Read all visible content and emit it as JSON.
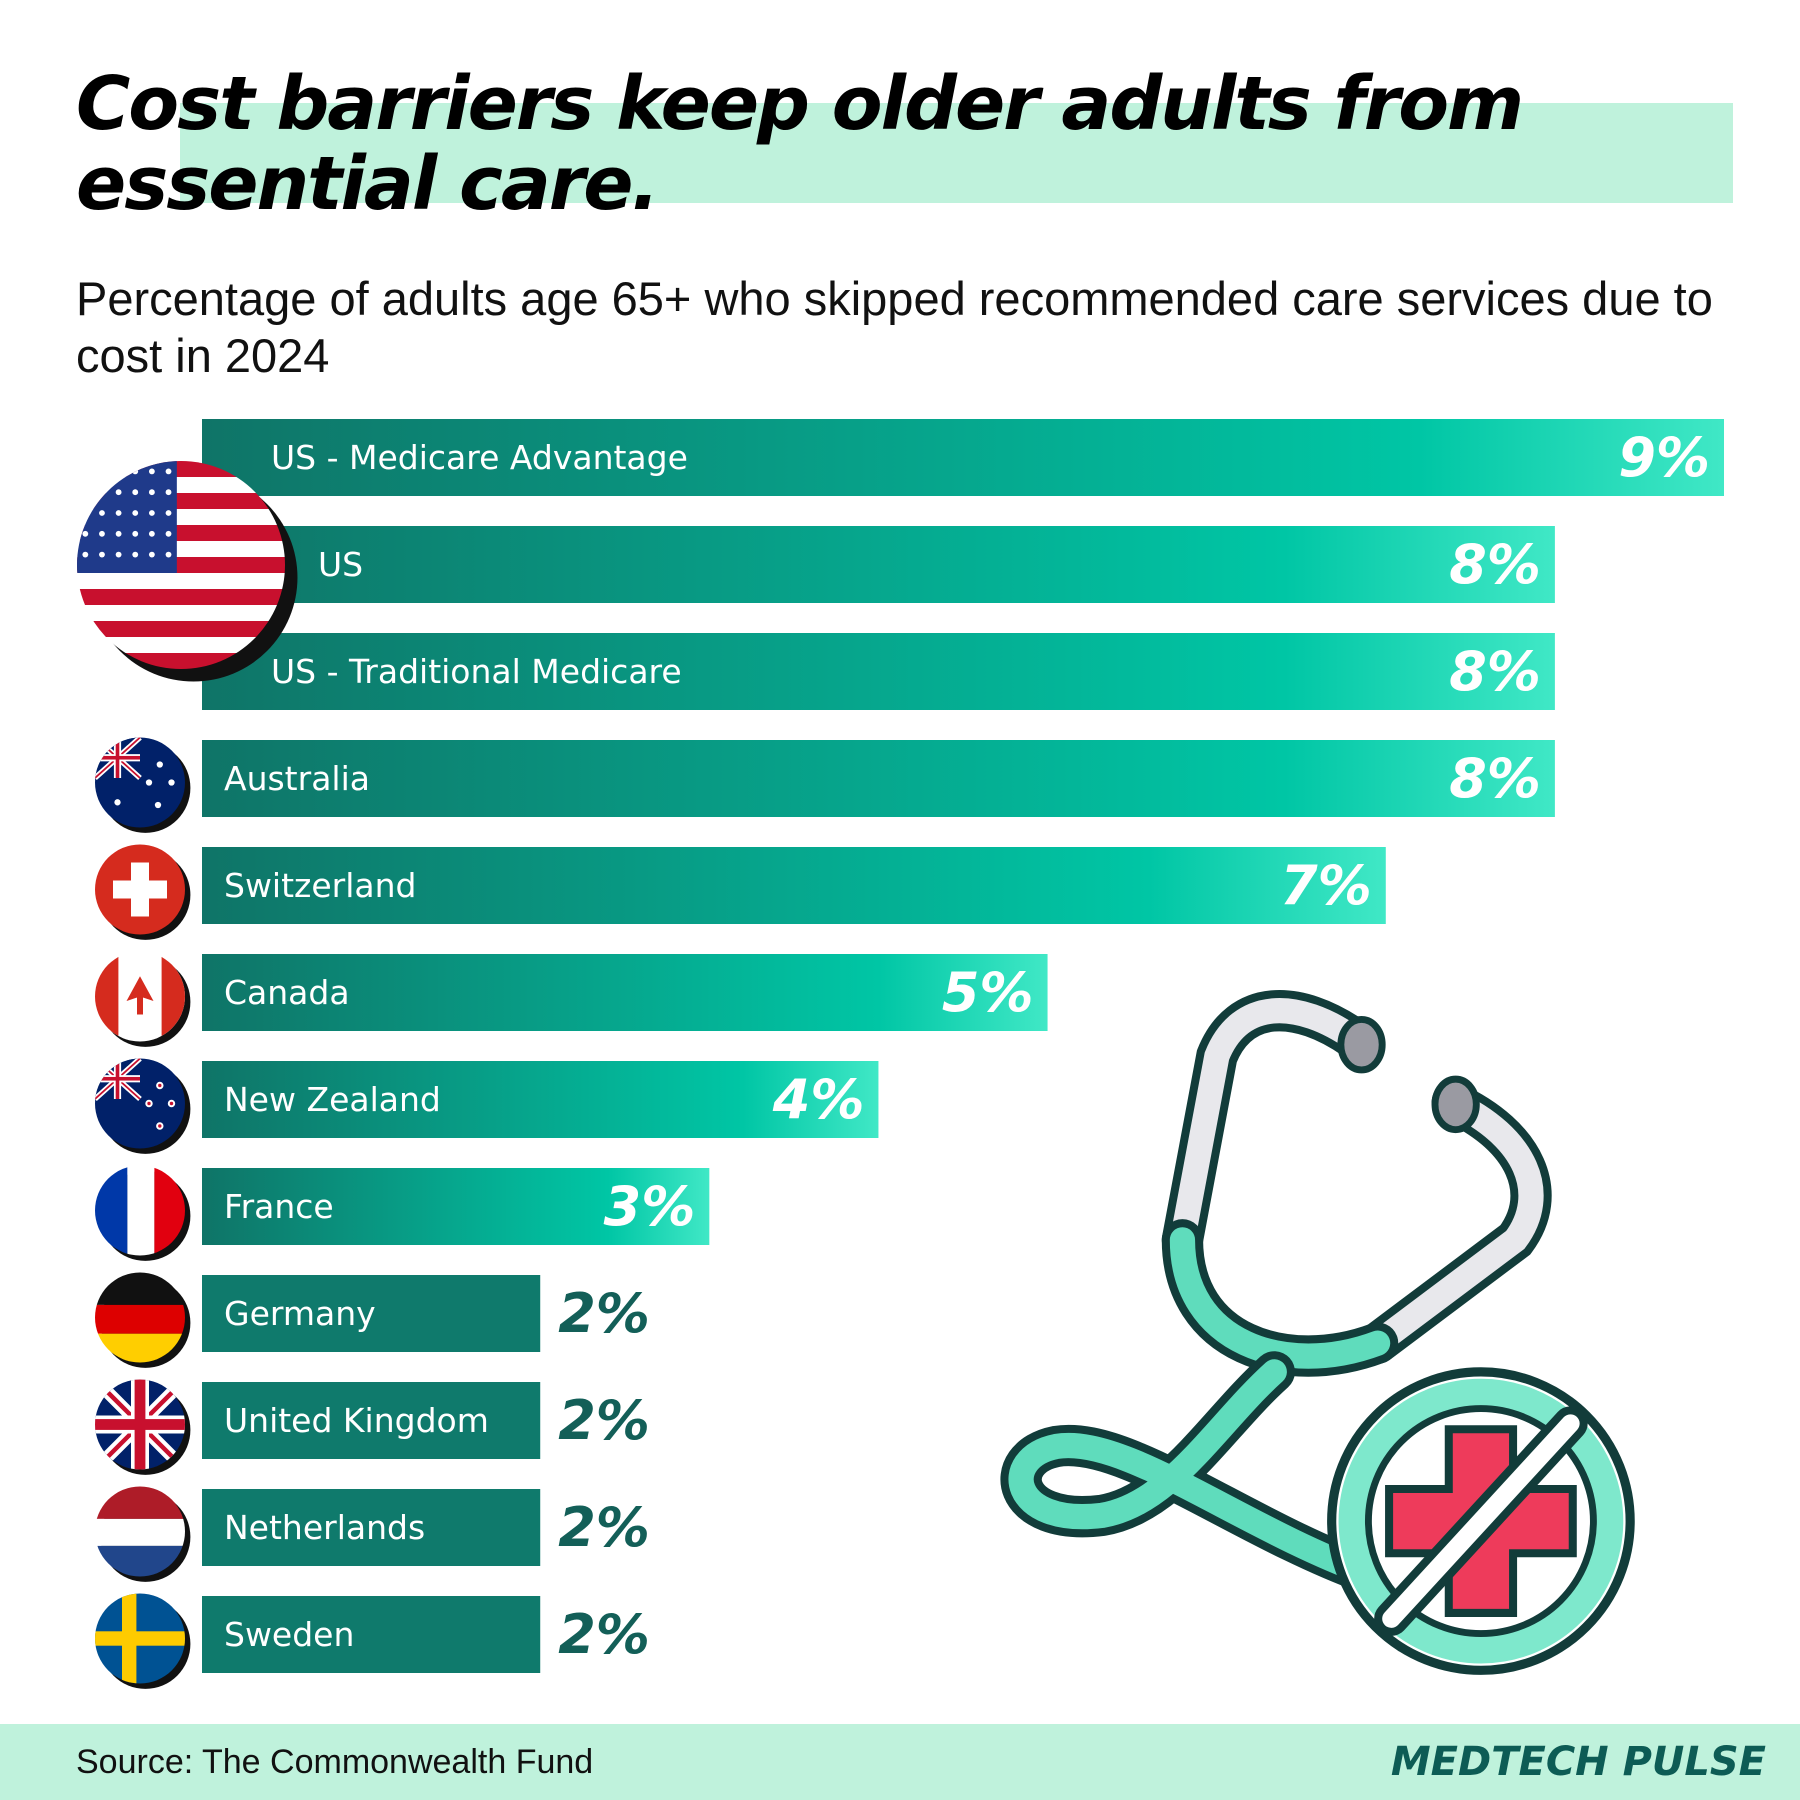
{
  "chart_data": {
    "type": "bar",
    "orientation": "horizontal",
    "title": "Cost barriers keep older adults from essential care.",
    "subtitle": "Percentage of adults age 65+ who skipped recommended care services due to cost in 2024",
    "categories": [
      "US - Medicare Advantage",
      "US",
      "US - Traditional Medicare",
      "Australia",
      "Switzerland",
      "Canada",
      "New Zealand",
      "France",
      "Germany",
      "United Kingdom",
      "Netherlands",
      "Sweden"
    ],
    "values": [
      9,
      8,
      8,
      8,
      7,
      5,
      4,
      3,
      2,
      2,
      2,
      2
    ],
    "value_labels": [
      "9%",
      "8%",
      "8%",
      "8%",
      "7%",
      "5%",
      "4%",
      "3%",
      "2%",
      "2%",
      "2%",
      "2%"
    ],
    "color": "#0f7a6c",
    "source": "Source: The Commonwealth Fund"
  },
  "brand": "MEDTECH PULSE"
}
